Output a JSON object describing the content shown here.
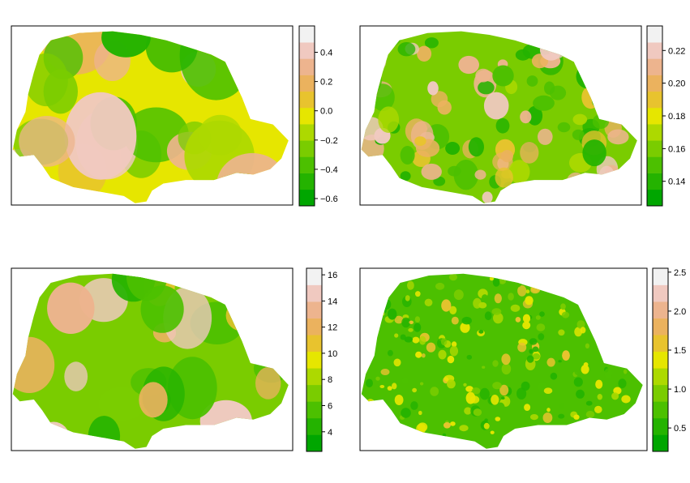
{
  "colors": {
    "ramp": [
      "#00A600",
      "#24B300",
      "#4CC000",
      "#7ACC00",
      "#ADD900",
      "#E6E600",
      "#E8C32E",
      "#EBB25E",
      "#EDB48E",
      "#F0C9C0",
      "#F2F2F2"
    ]
  },
  "chart_data": [
    {
      "type": "heatmap",
      "title": "",
      "xlabel": "",
      "ylabel": "",
      "color_scale": "terrain",
      "range": [
        -0.65,
        0.58
      ],
      "ticks": [
        0.4,
        0.2,
        0.0,
        -0.2,
        -0.4,
        -0.6
      ],
      "tick_labels": [
        "0.4",
        "0.2",
        "0.0",
        "−0.2",
        "−0.4",
        "−0.6"
      ],
      "pattern": "smooth, large patches"
    },
    {
      "type": "heatmap",
      "title": "",
      "xlabel": "",
      "ylabel": "",
      "color_scale": "terrain",
      "range": [
        0.125,
        0.235
      ],
      "ticks": [
        0.22,
        0.2,
        0.18,
        0.16,
        0.14
      ],
      "tick_labels": [
        "0.22",
        "0.20",
        "0.18",
        "0.16",
        "0.14"
      ],
      "pattern": "many small blobs"
    },
    {
      "type": "heatmap",
      "title": "",
      "xlabel": "",
      "ylabel": "",
      "color_scale": "terrain",
      "range": [
        2.5,
        16.5
      ],
      "ticks": [
        16,
        14,
        12,
        10,
        8,
        6,
        4
      ],
      "tick_labels": [
        "16",
        "14",
        "12",
        "10",
        "8",
        "6",
        "4"
      ],
      "pattern": "mostly low, few hot spots"
    },
    {
      "type": "heatmap",
      "title": "",
      "xlabel": "",
      "ylabel": "",
      "color_scale": "terrain",
      "range": [
        0.2,
        2.55
      ],
      "ticks": [
        2.5,
        2.0,
        1.5,
        1.0,
        0.5
      ],
      "tick_labels": [
        "2.5",
        "2.0",
        "1.5",
        "1.0",
        "0.5"
      ],
      "pattern": "speckled, many small spots"
    }
  ]
}
